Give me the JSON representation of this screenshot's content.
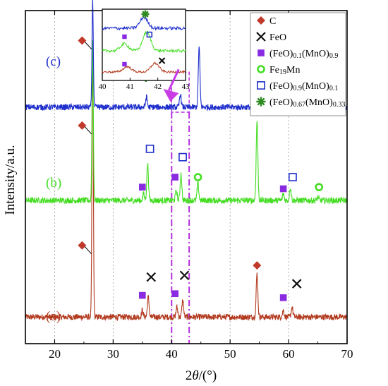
{
  "chart_data": {
    "type": "line",
    "xlabel_prefix": "2",
    "xlabel_theta": "θ",
    "xlabel_suffix": "/(°)",
    "ylabel": "Intensity/a.u.",
    "xlim": [
      15,
      70
    ],
    "xticks": [
      "20",
      "30",
      "40",
      "50",
      "60",
      "70"
    ],
    "grid": "vertical-dotted",
    "series": [
      {
        "name": "(a)",
        "color": "#b23a1f",
        "baseline": 0.08,
        "peaks": [
          {
            "x": 26.5,
            "h": 0.82
          },
          {
            "x": 35.0,
            "h": 0.02
          },
          {
            "x": 36.0,
            "h": 0.06
          },
          {
            "x": 40.9,
            "h": 0.03
          },
          {
            "x": 41.9,
            "h": 0.05
          },
          {
            "x": 54.6,
            "h": 0.13
          },
          {
            "x": 59.1,
            "h": 0.02
          },
          {
            "x": 60.6,
            "h": 0.03
          }
        ]
      },
      {
        "name": "(b)",
        "color": "#44dd22",
        "baseline": 0.43,
        "peaks": [
          {
            "x": 26.5,
            "h": 0.48
          },
          {
            "x": 35.2,
            "h": 0.02
          },
          {
            "x": 35.9,
            "h": 0.11
          },
          {
            "x": 40.8,
            "h": 0.03
          },
          {
            "x": 41.6,
            "h": 0.08
          },
          {
            "x": 44.5,
            "h": 0.05
          },
          {
            "x": 54.6,
            "h": 0.24
          },
          {
            "x": 59.1,
            "h": 0.02
          },
          {
            "x": 60.3,
            "h": 0.04
          },
          {
            "x": 65.0,
            "h": 0.01
          }
        ]
      },
      {
        "name": "(c)",
        "color": "#1f2fcc",
        "baseline": 0.71,
        "peaks": [
          {
            "x": 26.5,
            "h": 0.32
          },
          {
            "x": 35.7,
            "h": 0.03
          },
          {
            "x": 41.5,
            "h": 0.04
          },
          {
            "x": 44.7,
            "h": 0.18
          },
          {
            "x": 54.6,
            "h": 0.18
          },
          {
            "x": 60.0,
            "h": 0.02
          },
          {
            "x": 65.0,
            "h": 0.01
          }
        ]
      }
    ],
    "inset": {
      "xlim": [
        40,
        43
      ],
      "xticks": [
        "40",
        "41",
        "42",
        "43"
      ]
    },
    "zoom_range": [
      40,
      43
    ],
    "legend": {
      "position": "top-right",
      "entries": [
        {
          "label": "C",
          "sub": "",
          "label2": "",
          "sub2": "",
          "marker": "diamond",
          "color": "#c0392b"
        },
        {
          "label": "FeO",
          "sub": "",
          "label2": "",
          "sub2": "",
          "marker": "cross",
          "color": "#111111"
        },
        {
          "label": "(FeO)",
          "sub": "0.1",
          "label2": "(MnO)",
          "sub2": "0.9",
          "marker": "filled-square",
          "color": "#8a2be2"
        },
        {
          "label": "Fe",
          "sub": "19",
          "label2": "Mn",
          "sub2": "",
          "marker": "circle",
          "color": "#44dd22"
        },
        {
          "label": "(FeO)",
          "sub": "0.9",
          "label2": "(MnO)",
          "sub2": "0.1",
          "marker": "open-square",
          "color": "#1f2fcc"
        },
        {
          "label": "(FeO)",
          "sub": "0.67",
          "label2": "(MnO)",
          "sub2": "0.33",
          "marker": "star",
          "color": "#2e8b22"
        }
      ]
    },
    "annotations": [
      {
        "marker": "diamond",
        "x": 24.7,
        "y": 0.295
      },
      {
        "marker": "diamond",
        "x": 24.7,
        "y": 0.655
      },
      {
        "marker": "diamond",
        "x": 24.7,
        "y": 0.91
      },
      {
        "marker": "diamond",
        "x": 54.6,
        "y": 0.235
      },
      {
        "marker": "diamond",
        "x": 54.6,
        "y": 0.695
      },
      {
        "marker": "diamond",
        "x": 54.6,
        "y": 0.91
      },
      {
        "marker": "cross",
        "x": 36.5,
        "y": 0.2
      },
      {
        "marker": "cross",
        "x": 42.2,
        "y": 0.205
      },
      {
        "marker": "cross",
        "x": 61.4,
        "y": 0.18
      },
      {
        "marker": "filled-square",
        "x": 35.0,
        "y": 0.145
      },
      {
        "marker": "filled-square",
        "x": 40.6,
        "y": 0.15
      },
      {
        "marker": "filled-square",
        "x": 59.1,
        "y": 0.138
      },
      {
        "marker": "filled-square",
        "x": 35.0,
        "y": 0.47
      },
      {
        "marker": "filled-square",
        "x": 40.6,
        "y": 0.5
      },
      {
        "marker": "filled-square",
        "x": 59.1,
        "y": 0.465
      },
      {
        "marker": "open-square",
        "x": 36.3,
        "y": 0.585
      },
      {
        "marker": "open-square",
        "x": 41.9,
        "y": 0.56
      },
      {
        "marker": "open-square",
        "x": 60.7,
        "y": 0.5
      },
      {
        "marker": "circle",
        "x": 44.5,
        "y": 0.5
      },
      {
        "marker": "circle",
        "x": 65.2,
        "y": 0.47
      },
      {
        "marker": "circle",
        "x": 64.8,
        "y": 0.775
      },
      {
        "marker": "star",
        "x": 35.6,
        "y": 0.8
      },
      {
        "marker": "star",
        "x": 41.5,
        "y": 0.845
      },
      {
        "marker": "star",
        "x": 60.0,
        "y": 0.78
      }
    ],
    "series_labels": [
      {
        "text": "(a)",
        "x": 18.5,
        "y": 0.07,
        "color": "#b23a1f"
      },
      {
        "text": "(b)",
        "x": 18.5,
        "y": 0.47,
        "color": "#44dd22"
      },
      {
        "text": "(c)",
        "x": 18.5,
        "y": 0.835,
        "color": "#1f2fcc"
      }
    ]
  }
}
